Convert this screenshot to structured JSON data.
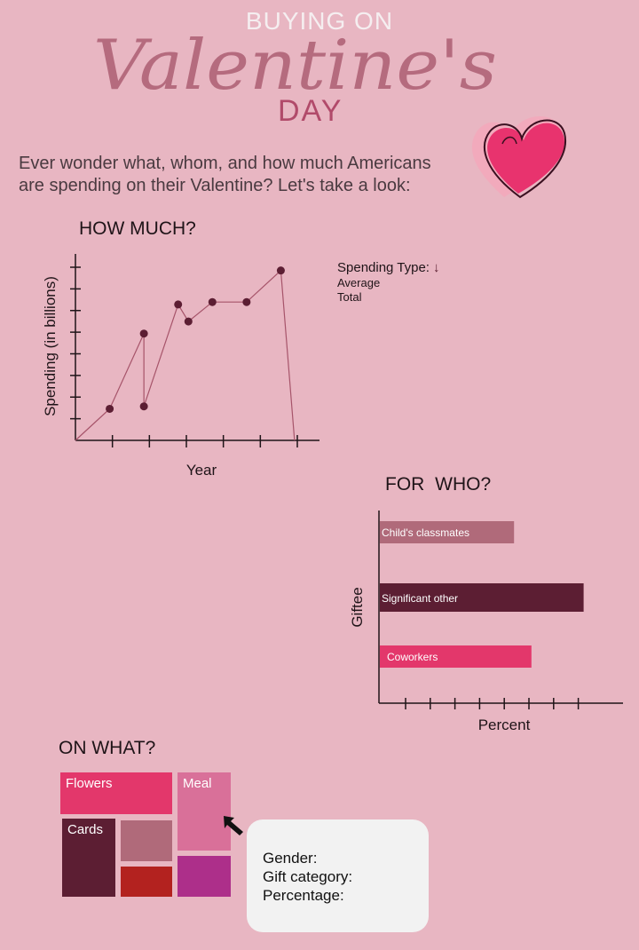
{
  "header": {
    "title_top": "BUYING ON",
    "title_script": "Valentine's",
    "title_bottom": "DAY",
    "intro_line1": "Ever wonder what, whom, and how much Americans",
    "intro_line2": "are spending on their Valentine? Let's take a look:"
  },
  "colors": {
    "background": "#e8b6c2",
    "dark_maroon": "#5c1e33",
    "pink": "#e3376b",
    "mauve": "#b06a7a",
    "orchid": "#d97099",
    "red": "#b3221f",
    "magenta": "#ad2f8a"
  },
  "how_much": {
    "heading": "HOW MUCH?",
    "legend_title": "Spending Type:",
    "legend_icon": "down-arrow-icon",
    "legend_items": [
      "Average",
      "Total"
    ]
  },
  "for_who": {
    "heading": "FOR   WHO?"
  },
  "on_what": {
    "heading": "ON WHAT?",
    "cells": [
      "Flowers",
      "Meal",
      "Cards"
    ]
  },
  "tooltip": {
    "gender_label": "Gender:",
    "category_label": "Gift category:",
    "percentage_label": "Percentage:"
  },
  "chart_data": [
    {
      "type": "line",
      "title": "HOW MUCH?",
      "xlabel": "Year",
      "ylabel": "Spending (in billions)",
      "x": [
        0,
        1,
        2,
        2,
        3,
        3.3,
        4,
        5,
        6,
        6.4
      ],
      "series": [
        {
          "values": [
            0,
            1.3,
            4.4,
            1.4,
            5.6,
            4.9,
            5.7,
            5.7,
            7.0,
            0
          ]
        }
      ],
      "xlim": [
        0,
        7
      ],
      "ylim": [
        0,
        7.5
      ],
      "x_ticks": 6,
      "y_ticks": 8,
      "grid": false
    },
    {
      "type": "bar",
      "orientation": "horizontal",
      "title": "FOR   WHO?",
      "xlabel": "Percent",
      "ylabel": "Giftee",
      "categories": [
        "Child's classmates",
        "Significant other",
        "Coworkers"
      ],
      "values": [
        5.4,
        8.2,
        6.1
      ],
      "bar_colors": [
        "#b06a7a",
        "#5c1e33",
        "#e3376b"
      ],
      "xlim": [
        0,
        10
      ],
      "x_ticks": 8,
      "grid": false
    },
    {
      "type": "treemap",
      "title": "ON WHAT?",
      "categories": [
        "Flowers",
        "Meal",
        "Cards",
        "",
        "",
        ""
      ],
      "cell_colors": [
        "#e3376b",
        "#d97099",
        "#5c1e33",
        "#b06a7a",
        "#b3221f",
        "#ad2f8a"
      ]
    }
  ]
}
